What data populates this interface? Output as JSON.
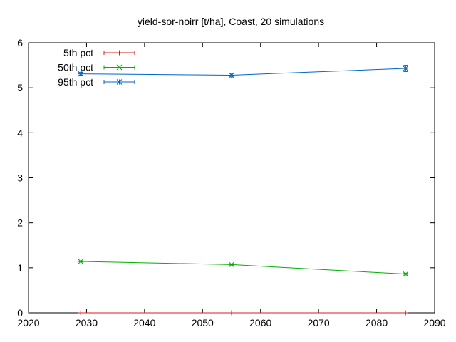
{
  "chart_data": {
    "type": "line",
    "title": "yield-sor-noirr [t/ha], Coast, 20 simulations",
    "xlabel": "",
    "ylabel": "",
    "xlim": [
      2020,
      2090
    ],
    "ylim": [
      0,
      6
    ],
    "xticks": [
      2020,
      2030,
      2040,
      2050,
      2060,
      2070,
      2080,
      2090
    ],
    "yticks": [
      0,
      1,
      2,
      3,
      4,
      5,
      6
    ],
    "x": [
      2029,
      2055,
      2085
    ],
    "legend_position": "top-left",
    "grid": false,
    "series": [
      {
        "name": "5th pct",
        "color": "#e31a1c",
        "marker": "plus",
        "values": [
          0,
          0,
          0
        ],
        "errors": [
          0,
          0,
          0
        ]
      },
      {
        "name": "50th pct",
        "color": "#00b000",
        "marker": "cross",
        "values": [
          1.14,
          1.07,
          0.86
        ],
        "errors": [
          0.01,
          0.01,
          0.02
        ]
      },
      {
        "name": "95th pct",
        "color": "#0066cc",
        "marker": "star",
        "values": [
          5.31,
          5.28,
          5.43
        ],
        "errors": [
          0.03,
          0.04,
          0.07
        ]
      }
    ]
  }
}
